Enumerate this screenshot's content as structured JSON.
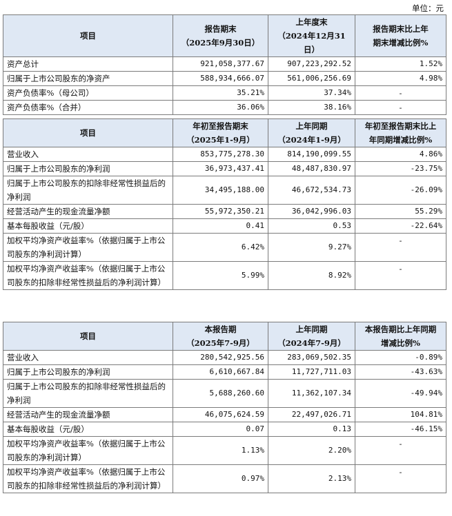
{
  "unit": "单位：元",
  "table1": {
    "headers": [
      "项目",
      "报告期末",
      "（2025年9月30日）",
      "上年度末",
      "（2024年12月31日）",
      "报告期末比上年",
      "期末增减比例%"
    ],
    "rows": [
      [
        "资产总计",
        "921,058,377.67",
        "907,223,292.52",
        "1.52%"
      ],
      [
        "归属于上市公司股东的净资产",
        "588,934,666.07",
        "561,006,256.69",
        "4.98%"
      ],
      [
        "资产负债率%（母公司）",
        "35.21%",
        "37.34%",
        "-"
      ],
      [
        "资产负债率%（合并）",
        "36.06%",
        "38.16%",
        "-"
      ]
    ]
  },
  "table2": {
    "headers": [
      "项目",
      "年初至报告期末",
      "（2025年1-9月）",
      "上年同期",
      "（2024年1-9月）",
      "年初至报告期末比上",
      "年同期增减比例%"
    ],
    "rows": [
      [
        "营业收入",
        "853,775,278.30",
        "814,190,099.55",
        "4.86%"
      ],
      [
        "归属于上市公司股东的净利润",
        "36,973,437.41",
        "48,487,830.97",
        "-23.75%"
      ],
      [
        "归属于上市公司股东的扣除非经常性损益后的净利润",
        "34,495,188.00",
        "46,672,534.73",
        "-26.09%"
      ],
      [
        "经营活动产生的现金流量净额",
        "55,972,350.21",
        "36,042,996.03",
        "55.29%"
      ],
      [
        "基本每股收益（元/股）",
        "0.41",
        "0.53",
        "-22.64%"
      ],
      [
        "加权平均净资产收益率%（依据归属于上市公司股东的净利润计算）",
        "6.42%",
        "9.27%",
        "-"
      ],
      [
        "加权平均净资产收益率%（依据归属于上市公司股东的扣除非经常性损益后的净利润计算）",
        "5.99%",
        "8.92%",
        "-"
      ]
    ]
  },
  "table3": {
    "headers": [
      "项目",
      "本报告期",
      "（2025年7-9月）",
      "上年同期",
      "（2024年7-9月）",
      "本报告期比上年同期",
      "增减比例%"
    ],
    "rows": [
      [
        "营业收入",
        "280,542,925.56",
        "283,069,502.35",
        "-0.89%"
      ],
      [
        "归属于上市公司股东的净利润",
        "6,610,667.84",
        "11,727,711.03",
        "-43.63%"
      ],
      [
        "归属于上市公司股东的扣除非经常性损益后的净利润",
        "5,688,260.60",
        "11,362,107.34",
        "-49.94%"
      ],
      [
        "经营活动产生的现金流量净额",
        "46,075,624.59",
        "22,497,026.71",
        "104.81%"
      ],
      [
        "基本每股收益（元/股）",
        "0.07",
        "0.13",
        "-46.15%"
      ],
      [
        "加权平均净资产收益率%（依据归属于上市公司股东的净利润计算）",
        "1.13%",
        "2.20%",
        "-"
      ],
      [
        "加权平均净资产收益率%（依据归属于上市公司股东的扣除非经常性损益后的净利润计算）",
        "0.97%",
        "2.13%",
        "-"
      ]
    ]
  }
}
